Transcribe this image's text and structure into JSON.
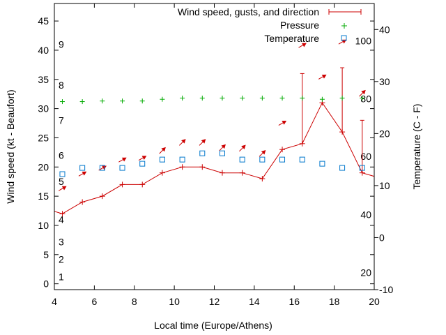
{
  "chart_data": {
    "type": "line",
    "xlabel": "Local time (Europe/Athens)",
    "ylabel": "Wind speed (kt - Beaufort)",
    "y2label": "Temperature (C - F)",
    "xlim": [
      4,
      20
    ],
    "ylim": [
      -1,
      48
    ],
    "y2lim": [
      -10,
      45
    ],
    "x_ticks": [
      4,
      6,
      8,
      10,
      12,
      14,
      16,
      18,
      20
    ],
    "y_ticks": [
      0,
      5,
      10,
      15,
      20,
      25,
      30,
      35,
      40,
      45
    ],
    "y2_ticks": [
      -10,
      0,
      10,
      20,
      30,
      40
    ],
    "beaufort_labels": [
      {
        "label": "1",
        "kt": 1.2
      },
      {
        "label": "2",
        "kt": 4.2
      },
      {
        "label": "3",
        "kt": 7.2
      },
      {
        "label": "4",
        "kt": 11.0
      },
      {
        "label": "5",
        "kt": 17.5
      },
      {
        "label": "6",
        "kt": 22.0
      },
      {
        "label": "7",
        "kt": 28.0
      },
      {
        "label": "8",
        "kt": 34.0
      },
      {
        "label": "9",
        "kt": 41.0
      }
    ],
    "fahrenheit_labels": [
      {
        "label": "20",
        "celsius": -6.7
      },
      {
        "label": "40",
        "celsius": 4.4
      },
      {
        "label": "60",
        "celsius": 15.6
      },
      {
        "label": "80",
        "celsius": 26.7
      },
      {
        "label": "100",
        "celsius": 37.8
      }
    ],
    "legend_position": "top-right",
    "series": [
      {
        "name": "Wind speed, gusts, and direction",
        "color": "#cc0000",
        "x": [
          3.4,
          4.4,
          5.4,
          6.4,
          7.4,
          8.4,
          9.4,
          10.4,
          11.4,
          12.4,
          13.4,
          14.4,
          15.4,
          16.4,
          17.4,
          18.4,
          19.4,
          20.4
        ],
        "y": [
          13,
          12,
          14,
          15,
          17,
          17,
          19,
          20,
          20,
          19,
          19,
          18,
          23,
          24,
          31,
          26,
          19,
          18
        ],
        "gusts": [
          null,
          null,
          null,
          null,
          null,
          null,
          null,
          null,
          null,
          null,
          null,
          null,
          null,
          36,
          null,
          37,
          28,
          null
        ],
        "direction_deg": [
          225,
          240,
          240,
          240,
          240,
          240,
          225,
          225,
          225,
          225,
          225,
          225,
          240,
          240,
          240,
          240,
          225,
          225
        ],
        "arrow_x": [
          4.4,
          5.4,
          6.4,
          7.4,
          8.4,
          9.4,
          10.4,
          11.4,
          12.4,
          13.4,
          14.4,
          15.4,
          16.4,
          17.4,
          18.4,
          19.4
        ],
        "arrow_y": [
          16.3,
          18.8,
          19.8,
          21.2,
          21.5,
          22.8,
          24.2,
          24.2,
          23.3,
          23.2,
          22.3,
          27.5,
          40.8,
          35.4,
          41.4,
          32.6
        ]
      },
      {
        "name": "Pressure",
        "color": "#00aa00",
        "x": [
          4.4,
          5.4,
          6.4,
          7.4,
          8.4,
          9.4,
          10.4,
          11.4,
          12.4,
          13.4,
          14.4,
          15.4,
          16.4,
          17.4,
          18.4,
          19.4
        ],
        "y": [
          31.2,
          31.2,
          31.3,
          31.3,
          31.3,
          31.6,
          31.8,
          31.8,
          31.8,
          31.8,
          31.8,
          31.8,
          31.8,
          31.6,
          31.8,
          31.8
        ]
      },
      {
        "name": "Temperature",
        "color": "#0077cc",
        "axis": "y2",
        "x": [
          4.4,
          5.4,
          6.4,
          7.4,
          8.4,
          9.4,
          10.4,
          11.4,
          12.4,
          13.4,
          14.4,
          15.4,
          16.4,
          17.4,
          18.4,
          19.4
        ],
        "y": [
          12.2,
          13.4,
          13.4,
          13.4,
          14.2,
          15.0,
          15.0,
          16.2,
          16.2,
          15.0,
          15.0,
          15.0,
          15.0,
          14.2,
          13.4,
          13.4
        ]
      }
    ]
  }
}
